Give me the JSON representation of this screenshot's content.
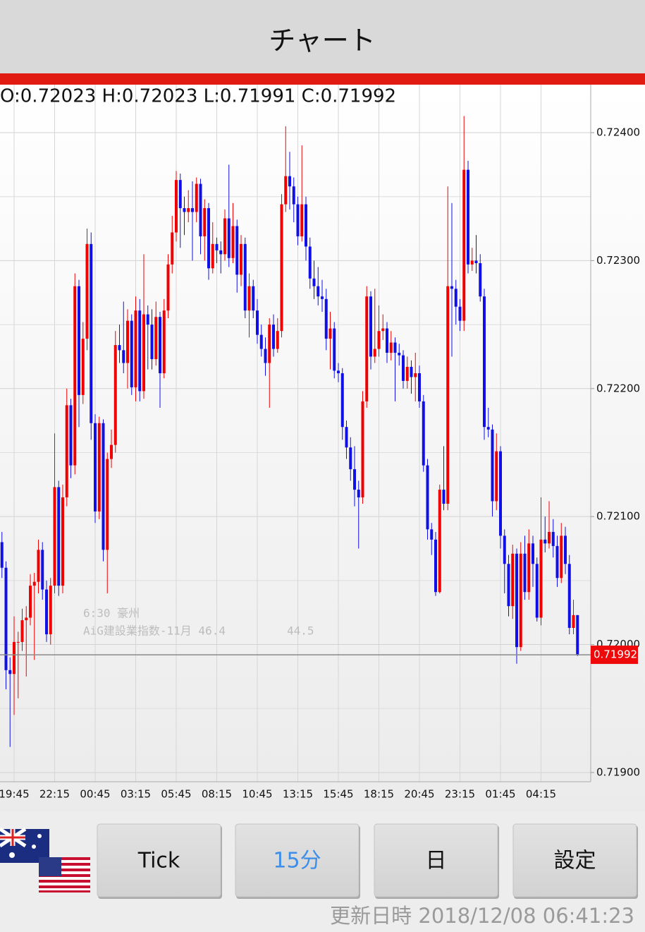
{
  "header": {
    "title": "チャート"
  },
  "ohlc_label": "O:0.72023 H:0.72023 L:0.71991 C:0.71992",
  "chart_data": {
    "type": "candlestick",
    "categories": [
      null,
      null,
      null,
      "19:45",
      null,
      null,
      null,
      null,
      null,
      null,
      null,
      null,
      null,
      "22:15",
      null,
      null,
      null,
      null,
      null,
      null,
      null,
      null,
      null,
      "00:45",
      null,
      null,
      null,
      null,
      null,
      null,
      null,
      null,
      null,
      "03:15",
      null,
      null,
      null,
      null,
      null,
      null,
      null,
      null,
      null,
      "05:45",
      null,
      null,
      null,
      null,
      null,
      null,
      null,
      null,
      null,
      "08:15",
      null,
      null,
      null,
      null,
      null,
      null,
      null,
      null,
      null,
      "10:45",
      null,
      null,
      null,
      null,
      null,
      null,
      null,
      null,
      null,
      "13:15",
      null,
      null,
      null,
      null,
      null,
      null,
      null,
      null,
      null,
      "15:45",
      null,
      null,
      null,
      null,
      null,
      null,
      null,
      null,
      null,
      "18:15",
      null,
      null,
      null,
      null,
      null,
      null,
      null,
      null,
      null,
      "20:45",
      null,
      null,
      null,
      null,
      null,
      null,
      null,
      null,
      null,
      "23:15",
      null,
      null,
      null,
      null,
      null,
      null,
      null,
      null,
      null,
      "01:45",
      null,
      null,
      null,
      null,
      null,
      null,
      null,
      null,
      null,
      "04:15",
      null,
      null,
      null,
      null,
      null,
      null,
      null,
      null,
      null
    ],
    "open": [
      0.7208,
      0.7206,
      0.7198,
      0.71977,
      0.72002,
      0.72002,
      0.72019,
      0.72021,
      0.72046,
      0.72049,
      0.72074,
      0.72043,
      0.72008,
      0.72046,
      0.72123,
      0.72046,
      0.72115,
      0.72187,
      0.7214,
      0.7228,
      0.72195,
      0.72239,
      0.72313,
      0.72173,
      0.72104,
      0.72173,
      0.72074,
      0.72145,
      0.72156,
      0.72234,
      0.7223,
      0.7222,
      0.72253,
      0.72201,
      0.72261,
      0.72198,
      0.72258,
      0.7225,
      0.72223,
      0.72256,
      0.72212,
      0.72261,
      0.72297,
      0.72322,
      0.72363,
      0.72341,
      0.72338,
      0.72341,
      0.72338,
      0.7236,
      0.72319,
      0.72341,
      0.72294,
      0.72313,
      0.72308,
      0.72305,
      0.72333,
      0.72302,
      0.72327,
      0.72289,
      0.72313,
      0.72261,
      0.7228,
      0.72261,
      0.72242,
      0.72231,
      0.7222,
      0.7225,
      0.72231,
      0.72245,
      0.72344,
      0.72366,
      0.72358,
      0.72344,
      0.72319,
      0.72344,
      0.72311,
      0.72286,
      0.7228,
      0.72272,
      0.7227,
      0.72239,
      0.72247,
      0.72214,
      0.72212,
      0.7217,
      0.72154,
      0.72137,
      0.72121,
      0.72115,
      0.7219,
      0.72272,
      0.72225,
      0.72231,
      0.72245,
      0.72247,
      0.72228,
      0.72236,
      0.72228,
      0.72226,
      0.72206,
      0.72217,
      0.72209,
      0.72212,
      0.7219,
      0.7214,
      0.7209,
      0.72082,
      0.72041,
      0.72121,
      0.7211,
      0.7228,
      0.72278,
      0.72264,
      0.72253,
      0.72371,
      0.72297,
      0.723,
      0.72298,
      0.72272,
      0.7217,
      0.72168,
      0.72112,
      0.72151,
      0.72085,
      0.72063,
      0.7203,
      0.72071,
      0.71998,
      0.72071,
      0.72041,
      0.72079,
      0.72063,
      0.72021,
      0.72082,
      0.72079,
      0.72088,
      0.72077,
      0.72052,
      0.72085,
      0.72063,
      0.72013,
      0.72023
    ],
    "high": [
      0.72088,
      0.72065,
      0.7199,
      0.72022,
      0.7201,
      0.72028,
      0.7203,
      0.72055,
      0.72056,
      0.72082,
      0.7208,
      0.7205,
      0.72052,
      0.72165,
      0.72128,
      0.72125,
      0.722,
      0.72192,
      0.7229,
      0.72285,
      0.72252,
      0.72325,
      0.72322,
      0.7218,
      0.72178,
      0.72176,
      0.7215,
      0.72168,
      0.72245,
      0.7225,
      0.72268,
      0.72262,
      0.72258,
      0.72272,
      0.7227,
      0.72305,
      0.72265,
      0.72262,
      0.72268,
      0.7226,
      0.7227,
      0.72305,
      0.72335,
      0.7237,
      0.72368,
      0.7235,
      0.72355,
      0.72362,
      0.72365,
      0.72364,
      0.72348,
      0.72345,
      0.7233,
      0.72318,
      0.72315,
      0.7234,
      0.72375,
      0.72345,
      0.72332,
      0.7232,
      0.72318,
      0.7229,
      0.72285,
      0.7227,
      0.7225,
      0.7224,
      0.72255,
      0.72258,
      0.72255,
      0.72352,
      0.72405,
      0.72385,
      0.72365,
      0.7235,
      0.7239,
      0.7235,
      0.72318,
      0.723,
      0.72295,
      0.72285,
      0.72278,
      0.7226,
      0.72252,
      0.7222,
      0.72216,
      0.72175,
      0.72162,
      0.72155,
      0.72128,
      0.72198,
      0.7228,
      0.72276,
      0.72278,
      0.72265,
      0.72258,
      0.72252,
      0.72245,
      0.7224,
      0.72235,
      0.7223,
      0.72225,
      0.72222,
      0.72228,
      0.72218,
      0.72195,
      0.72145,
      0.72095,
      0.72088,
      0.72125,
      0.72155,
      0.72358,
      0.72345,
      0.72285,
      0.7227,
      0.72413,
      0.72378,
      0.7231,
      0.7232,
      0.72305,
      0.72278,
      0.72185,
      0.72172,
      0.72165,
      0.72155,
      0.7209,
      0.7207,
      0.72078,
      0.72075,
      0.7208,
      0.72085,
      0.7209,
      0.72085,
      0.72068,
      0.72115,
      0.721,
      0.72112,
      0.72098,
      0.72085,
      0.72095,
      0.72092,
      0.7207,
      0.72035,
      0.72023
    ],
    "low": [
      0.72052,
      0.71965,
      0.7192,
      0.71945,
      0.71958,
      0.71995,
      0.71975,
      0.72015,
      0.71988,
      0.7204,
      0.72035,
      0.72002,
      0.72,
      0.7204,
      0.72038,
      0.7204,
      0.72108,
      0.7213,
      0.72133,
      0.7217,
      0.72188,
      0.7223,
      0.7216,
      0.72095,
      0.72098,
      0.72065,
      0.7204,
      0.72138,
      0.7215,
      0.7222,
      0.72212,
      0.722,
      0.72195,
      0.7219,
      0.7219,
      0.72192,
      0.72215,
      0.72215,
      0.72218,
      0.72185,
      0.72208,
      0.72255,
      0.7229,
      0.72315,
      0.7231,
      0.7232,
      0.7233,
      0.723,
      0.7233,
      0.72305,
      0.723,
      0.72285,
      0.7229,
      0.72298,
      0.7229,
      0.723,
      0.72295,
      0.72298,
      0.72275,
      0.7228,
      0.72255,
      0.7224,
      0.72255,
      0.72235,
      0.72225,
      0.7221,
      0.72185,
      0.72225,
      0.72228,
      0.7224,
      0.72338,
      0.7234,
      0.7233,
      0.72312,
      0.72315,
      0.723,
      0.72278,
      0.7227,
      0.72265,
      0.7226,
      0.7223,
      0.72215,
      0.72208,
      0.72205,
      0.7216,
      0.72145,
      0.72128,
      0.72108,
      0.72075,
      0.7211,
      0.72185,
      0.72215,
      0.7222,
      0.72225,
      0.72238,
      0.7222,
      0.72222,
      0.7219,
      0.72218,
      0.722,
      0.722,
      0.72196,
      0.7219,
      0.72185,
      0.72135,
      0.72082,
      0.7207,
      0.72038,
      0.7204,
      0.72105,
      0.72105,
      0.72225,
      0.7225,
      0.72245,
      0.72245,
      0.7229,
      0.72292,
      0.7229,
      0.72268,
      0.7216,
      0.72162,
      0.721,
      0.72105,
      0.72075,
      0.7204,
      0.72022,
      0.7202,
      0.71985,
      0.71995,
      0.72035,
      0.72035,
      0.72045,
      0.72018,
      0.72015,
      0.72072,
      0.72075,
      0.72068,
      0.72045,
      0.72048,
      0.72055,
      0.72008,
      0.72008,
      0.71991
    ],
    "close": [
      0.7206,
      0.7198,
      0.71977,
      0.72002,
      0.72002,
      0.72019,
      0.72021,
      0.72046,
      0.72049,
      0.72074,
      0.72043,
      0.72008,
      0.72046,
      0.72123,
      0.72046,
      0.72115,
      0.72187,
      0.7214,
      0.7228,
      0.72195,
      0.72239,
      0.72313,
      0.72173,
      0.72104,
      0.72173,
      0.72074,
      0.72145,
      0.72156,
      0.72234,
      0.7223,
      0.7222,
      0.72253,
      0.72201,
      0.72261,
      0.72198,
      0.72258,
      0.7225,
      0.72223,
      0.72256,
      0.72212,
      0.72261,
      0.72297,
      0.72322,
      0.72363,
      0.72341,
      0.72338,
      0.72341,
      0.72338,
      0.7236,
      0.72319,
      0.72341,
      0.72294,
      0.72313,
      0.72308,
      0.72305,
      0.72333,
      0.72302,
      0.72327,
      0.72289,
      0.72313,
      0.72261,
      0.7228,
      0.72261,
      0.72242,
      0.72231,
      0.7222,
      0.7225,
      0.72231,
      0.72245,
      0.72344,
      0.72366,
      0.72358,
      0.72344,
      0.72319,
      0.72344,
      0.72311,
      0.72286,
      0.7228,
      0.72272,
      0.7227,
      0.72239,
      0.72247,
      0.72214,
      0.72212,
      0.7217,
      0.72154,
      0.72137,
      0.72121,
      0.72115,
      0.7219,
      0.72272,
      0.72225,
      0.72231,
      0.72245,
      0.72247,
      0.72228,
      0.72236,
      0.72228,
      0.72226,
      0.72206,
      0.72217,
      0.72209,
      0.72212,
      0.7219,
      0.7214,
      0.7209,
      0.72082,
      0.72041,
      0.72121,
      0.7211,
      0.7228,
      0.72278,
      0.72264,
      0.72253,
      0.72371,
      0.72297,
      0.723,
      0.72298,
      0.72272,
      0.7217,
      0.72168,
      0.72112,
      0.72151,
      0.72085,
      0.72063,
      0.7203,
      0.72071,
      0.71998,
      0.72071,
      0.72041,
      0.72079,
      0.72063,
      0.72021,
      0.72082,
      0.72079,
      0.72088,
      0.72077,
      0.72052,
      0.72085,
      0.72063,
      0.72013,
      0.72023,
      0.71992
    ],
    "up_color": "#f00000",
    "down_color": "#1010e6",
    "ylim": [
      0.718928,
      0.724375
    ],
    "yticks": [
      {
        "value": 0.719,
        "label": "0.71900"
      },
      {
        "value": 0.72,
        "label": "0.72000"
      },
      {
        "value": 0.721,
        "label": "0.72100"
      },
      {
        "value": 0.722,
        "label": "0.72200"
      },
      {
        "value": 0.723,
        "label": "0.72300"
      },
      {
        "value": 0.724,
        "label": "0.72400"
      }
    ],
    "y_minor_ticks": [
      0.7195,
      0.7205,
      0.7215,
      0.7225,
      0.7235
    ],
    "grid": true,
    "current_price": {
      "value": 0.71992,
      "label": "0.71992"
    },
    "annotations": [
      "6:30 豪州",
      "AiG建設業指数-11月 46.4",
      "44.5"
    ]
  },
  "buttons": [
    {
      "label": "Tick",
      "selected": false
    },
    {
      "label": "15分",
      "selected": true
    },
    {
      "label": "日",
      "selected": false
    },
    {
      "label": "設定",
      "selected": false
    }
  ],
  "updated": "更新日時 2018/12/08 06:41:23"
}
